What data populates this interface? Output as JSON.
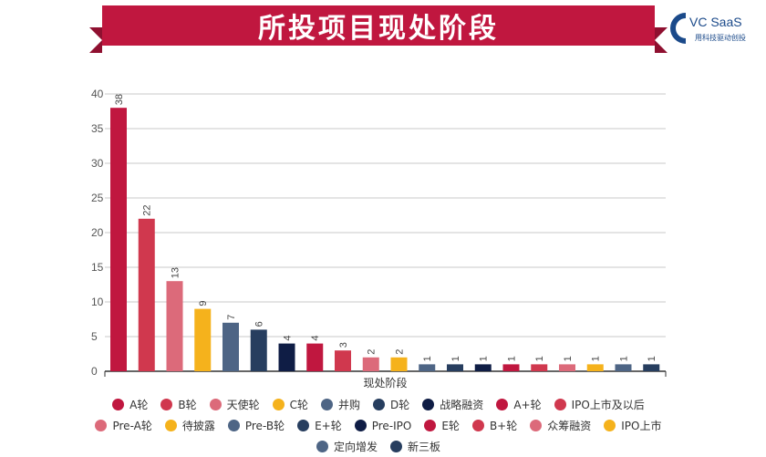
{
  "header": {
    "title": "所投项目现处阶段",
    "logo_name": "VC SaaS",
    "logo_tagline": "用科技驱动创投"
  },
  "colors": {
    "banner": "#c0173f",
    "grid": "#c8c8c8",
    "axis": "#333333"
  },
  "chart_data": {
    "type": "bar",
    "title": "所投项目现处阶段",
    "xlabel": "现处阶段",
    "ylabel": "",
    "ylim": [
      0,
      40
    ],
    "yticks": [
      0,
      5,
      10,
      15,
      20,
      25,
      30,
      35,
      40
    ],
    "grid": true,
    "legend_position": "bottom",
    "categories": [
      "A轮",
      "B轮",
      "天使轮",
      "C轮",
      "并购",
      "D轮",
      "战略融资",
      "A+轮",
      "IPO上市及以后",
      "Pre-A轮",
      "待披露",
      "Pre-B轮",
      "E+轮",
      "Pre-IPO",
      "E轮",
      "B+轮",
      "众筹融资",
      "IPO上市",
      "定向增发",
      "新三板"
    ],
    "values": [
      38,
      22,
      13,
      9,
      7,
      6,
      4,
      4,
      3,
      2,
      2,
      1,
      1,
      1,
      1,
      1,
      1,
      1,
      1,
      1
    ],
    "colors": [
      "#c0173f",
      "#d0384e",
      "#dc6a7a",
      "#f5b21c",
      "#4e6585",
      "#273e5f",
      "#0f1d45",
      "#c0173f",
      "#d0384e",
      "#dc6a7a",
      "#f5b21c",
      "#4e6585",
      "#273e5f",
      "#0f1d45",
      "#c0173f",
      "#d0384e",
      "#dc6a7a",
      "#f5b21c",
      "#4e6585",
      "#273e5f"
    ]
  }
}
